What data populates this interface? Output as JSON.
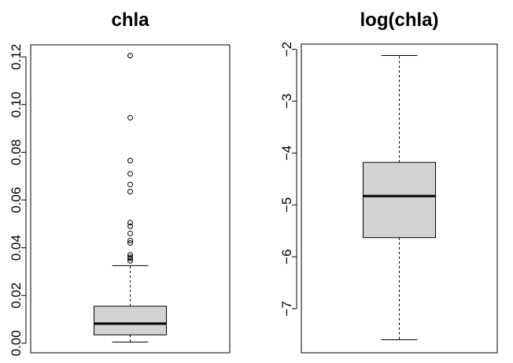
{
  "chart_data": [
    {
      "type": "boxplot",
      "title": "chla",
      "ylim": [
        -0.004,
        0.125
      ],
      "yticks": [
        0.0,
        0.02,
        0.04,
        0.06,
        0.08,
        0.1,
        0.12
      ],
      "ytick_labels": [
        "0.00",
        "0.02",
        "0.04",
        "0.06",
        "0.08",
        "0.10",
        "0.12"
      ],
      "whisker_low": 0.0005,
      "q1": 0.0035,
      "median": 0.0082,
      "q3": 0.0155,
      "whisker_high": 0.0325,
      "outliers": [
        0.1205,
        0.0945,
        0.0765,
        0.071,
        0.0665,
        0.0635,
        0.0505,
        0.049,
        0.046,
        0.043,
        0.042,
        0.037,
        0.036,
        0.0355,
        0.0345
      ]
    },
    {
      "type": "boxplot",
      "title": "log(chla)",
      "ylim": [
        -7.85,
        -1.9
      ],
      "yticks": [
        -7,
        -6,
        -5,
        -4,
        -3,
        -2
      ],
      "ytick_labels": [
        "−7",
        "−6",
        "−5",
        "−4",
        "−3",
        "−2"
      ],
      "whisker_low": -7.6,
      "q1": -5.63,
      "median": -4.83,
      "q3": -4.18,
      "whisker_high": -2.12,
      "outliers": []
    }
  ]
}
